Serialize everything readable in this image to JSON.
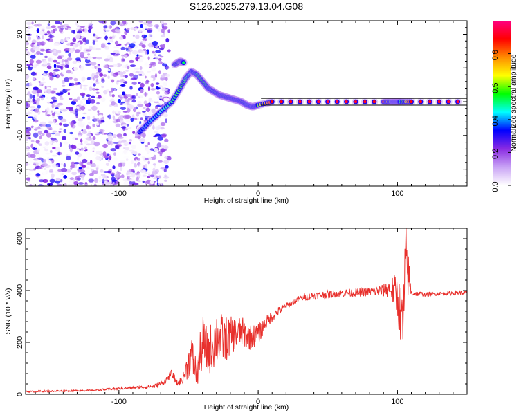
{
  "title": "S126.2025.279.13.04.G08",
  "chart_data": [
    {
      "id": "spectrogram",
      "type": "heatmap",
      "title": "S126.2025.279.13.04.G08",
      "xlabel": "Height of straight line (km)",
      "ylabel": "Frequency (Hz)",
      "xlim": [
        -167,
        150
      ],
      "ylim": [
        -25,
        24
      ],
      "xticks": [
        -100,
        0,
        100
      ],
      "xtick_labels": [
        "-100",
        "0",
        "100"
      ],
      "yticks": [
        -20,
        -10,
        0,
        10,
        20
      ],
      "ytick_labels": [
        "-20",
        "-10",
        "0",
        "10",
        "20"
      ],
      "noise_region_x": [
        -167,
        -68
      ],
      "ridge": {
        "x": [
          -85,
          -78,
          -70,
          -62,
          -56,
          -52,
          -48,
          -44,
          -40,
          -36,
          -32,
          -28,
          -24,
          -20,
          -16,
          -12,
          -8,
          -4,
          0,
          10,
          50,
          90,
          96,
          99,
          102,
          110,
          150
        ],
        "y": [
          -9,
          -6,
          -3,
          0,
          4,
          7,
          9,
          8,
          6,
          4,
          3,
          2,
          1.5,
          1,
          0.5,
          0,
          -1,
          -1.5,
          -1,
          0,
          0,
          0,
          0,
          0,
          0,
          0,
          0
        ],
        "amplitude": [
          0.35,
          0.4,
          0.45,
          0.5,
          0.55,
          0.5,
          0.45,
          0.5,
          0.55,
          0.5,
          0.5,
          0.5,
          0.55,
          0.55,
          0.55,
          0.6,
          0.5,
          0.5,
          0.6,
          0.9,
          0.95,
          0.9,
          0.5,
          0.35,
          0.5,
          0.9,
          0.95
        ]
      },
      "secondary_ridge": {
        "x": [
          -60,
          -56,
          -53
        ],
        "y": [
          11,
          12,
          11.5
        ],
        "amplitude": [
          0.55,
          0.6,
          0.5
        ]
      },
      "colorbar": {
        "label": "Normalized spectral amplitude",
        "range": [
          0,
          1
        ],
        "ticks": [
          0.0,
          0.2,
          0.4,
          0.6,
          0.8
        ],
        "tick_labels": [
          "0.0",
          "0.2",
          "0.4",
          "0.6",
          "0.8"
        ],
        "colors": [
          "#ffffff",
          "#c9a3f5",
          "#8a2be2",
          "#0000ff",
          "#00ffff",
          "#00ff00",
          "#ffff00",
          "#ff8c00",
          "#ff0000",
          "#ff0080"
        ]
      }
    },
    {
      "id": "snr",
      "type": "line",
      "xlabel": "Height of straight line (km)",
      "ylabel": "SNR (10 * v/v)",
      "xlim": [
        -167,
        150
      ],
      "ylim": [
        0,
        640
      ],
      "xticks": [
        -100,
        0,
        100
      ],
      "xtick_labels": [
        "-100",
        "0",
        "100"
      ],
      "yticks": [
        0,
        200,
        400,
        600
      ],
      "ytick_labels": [
        "0",
        "200",
        "400",
        "600"
      ],
      "series": [
        {
          "name": "SNR",
          "color": "#e8302c",
          "x": [
            -167,
            -120,
            -90,
            -75,
            -68,
            -62,
            -58,
            -54,
            -48,
            -44,
            -40,
            -36,
            -30,
            -24,
            -18,
            -12,
            -6,
            0,
            6,
            12,
            20,
            30,
            40,
            50,
            60,
            70,
            80,
            90,
            95,
            100,
            104,
            106,
            110,
            120,
            130,
            140,
            150
          ],
          "y": [
            10,
            15,
            25,
            30,
            45,
            80,
            40,
            60,
            150,
            80,
            200,
            160,
            220,
            210,
            230,
            240,
            220,
            230,
            280,
            310,
            340,
            370,
            380,
            385,
            390,
            392,
            395,
            400,
            410,
            380,
            260,
            520,
            390,
            385,
            388,
            390,
            392
          ],
          "noise_amplitude": [
            3,
            3,
            5,
            8,
            10,
            15,
            12,
            20,
            80,
            60,
            110,
            90,
            110,
            90,
            70,
            60,
            50,
            40,
            25,
            20,
            12,
            12,
            15,
            15,
            15,
            16,
            18,
            25,
            40,
            90,
            140,
            160,
            12,
            8,
            8,
            8,
            8
          ]
        }
      ]
    }
  ]
}
